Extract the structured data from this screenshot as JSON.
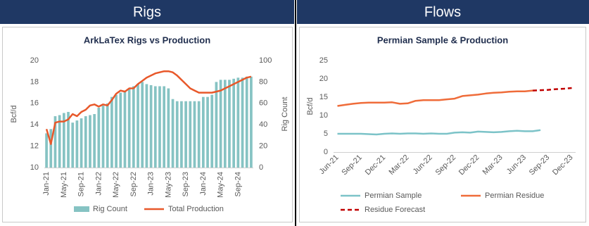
{
  "panels": [
    {
      "header": "Rigs"
    },
    {
      "header": "Flows"
    }
  ],
  "chart_data": [
    {
      "type": "combo",
      "title": "ArkLaTex Rigs vs Production",
      "y_label": "Bcf/d",
      "y2_label": "Rig Count",
      "categories": [
        "Jan-21",
        null,
        null,
        null,
        "May-21",
        null,
        null,
        null,
        "Sep-21",
        null,
        null,
        null,
        "Jan-22",
        null,
        null,
        null,
        "May-22",
        null,
        null,
        null,
        "Sep-22",
        null,
        null,
        null,
        "Jan-23",
        null,
        null,
        null,
        "May-23",
        null,
        null,
        null,
        "Sep-23",
        null,
        null,
        null,
        "Jan-24",
        null,
        null,
        null,
        "May-24",
        null,
        null,
        null,
        "Sep-24",
        null,
        null,
        null
      ],
      "series": [
        {
          "name": "Rig Count",
          "type": "bar",
          "axis": "y2",
          "color": "#86c3c3",
          "values": [
            32,
            36,
            48,
            49,
            51,
            52,
            42,
            44,
            46,
            48,
            49,
            50,
            56,
            58,
            60,
            66,
            68,
            70,
            72,
            74,
            76,
            78,
            80,
            78,
            77,
            76,
            76,
            76,
            74,
            64,
            62,
            62,
            62,
            62,
            62,
            62,
            66,
            66,
            68,
            80,
            82,
            82,
            82,
            83,
            84,
            84,
            85,
            85
          ]
        },
        {
          "name": "Total Production",
          "type": "line",
          "color": "#e8582a",
          "values": [
            13.6,
            12.2,
            14.2,
            14.3,
            14.3,
            14.5,
            15.0,
            14.8,
            15.2,
            15.4,
            15.8,
            15.9,
            15.7,
            15.9,
            15.8,
            16.3,
            16.9,
            17.2,
            17.1,
            17.4,
            17.4,
            17.8,
            18.1,
            18.4,
            18.6,
            18.8,
            18.9,
            19.0,
            19.0,
            18.9,
            18.6,
            18.2,
            17.8,
            17.4,
            17.2,
            17.0,
            17.0,
            17.0,
            17.0,
            17.1,
            17.2,
            17.4,
            17.6,
            17.8,
            18.0,
            18.2,
            18.4,
            18.5
          ]
        }
      ],
      "ylim": [
        10,
        20
      ],
      "yticks": [
        10,
        12,
        14,
        16,
        18,
        20
      ],
      "y2lim": [
        0,
        100
      ],
      "y2ticks": [
        0,
        20,
        40,
        60,
        80,
        100
      ],
      "grid": false,
      "legend": "bottom"
    },
    {
      "type": "line",
      "title": "Permian Sample & Production",
      "y_label": "Bcf/d",
      "categories": [
        "Jun-21",
        null,
        null,
        "Sep-21",
        null,
        null,
        "Dec-21",
        null,
        null,
        "Mar-22",
        null,
        null,
        "Jun-22",
        null,
        null,
        "Sep-22",
        null,
        null,
        "Dec-22",
        null,
        null,
        "Mar-23",
        null,
        null,
        "Jun-23",
        null,
        null,
        "Sep-23",
        null,
        null,
        "Dec-23"
      ],
      "series": [
        {
          "name": "Permian Sample",
          "type": "line",
          "color": "#7cc3c8",
          "values": [
            5.0,
            5.0,
            5.0,
            5.0,
            4.9,
            4.8,
            5.0,
            5.1,
            5.0,
            5.1,
            5.1,
            5.0,
            5.1,
            5.0,
            5.0,
            5.3,
            5.4,
            5.3,
            5.6,
            5.5,
            5.4,
            5.5,
            5.7,
            5.8,
            5.7,
            5.7,
            6.0,
            null,
            null,
            null,
            null
          ]
        },
        {
          "name": "Permian Residue",
          "type": "line",
          "color": "#ef6c3a",
          "values": [
            12.6,
            12.9,
            13.2,
            13.4,
            13.5,
            13.5,
            13.5,
            13.6,
            13.2,
            13.3,
            14.0,
            14.2,
            14.2,
            14.2,
            14.4,
            14.6,
            15.3,
            15.5,
            15.7,
            16.0,
            16.2,
            16.3,
            16.5,
            16.6,
            16.6,
            16.8,
            null,
            null,
            null,
            null,
            null
          ]
        },
        {
          "name": "Residue Forecast",
          "type": "line",
          "dash": true,
          "color": "#c00000",
          "values": [
            null,
            null,
            null,
            null,
            null,
            null,
            null,
            null,
            null,
            null,
            null,
            null,
            null,
            null,
            null,
            null,
            null,
            null,
            null,
            null,
            null,
            null,
            null,
            null,
            null,
            16.8,
            16.9,
            17.0,
            17.2,
            17.3,
            17.5
          ]
        }
      ],
      "ylim": [
        0,
        25
      ],
      "yticks": [
        0,
        5,
        10,
        15,
        20,
        25
      ],
      "grid": false,
      "legend": "bottom"
    }
  ]
}
